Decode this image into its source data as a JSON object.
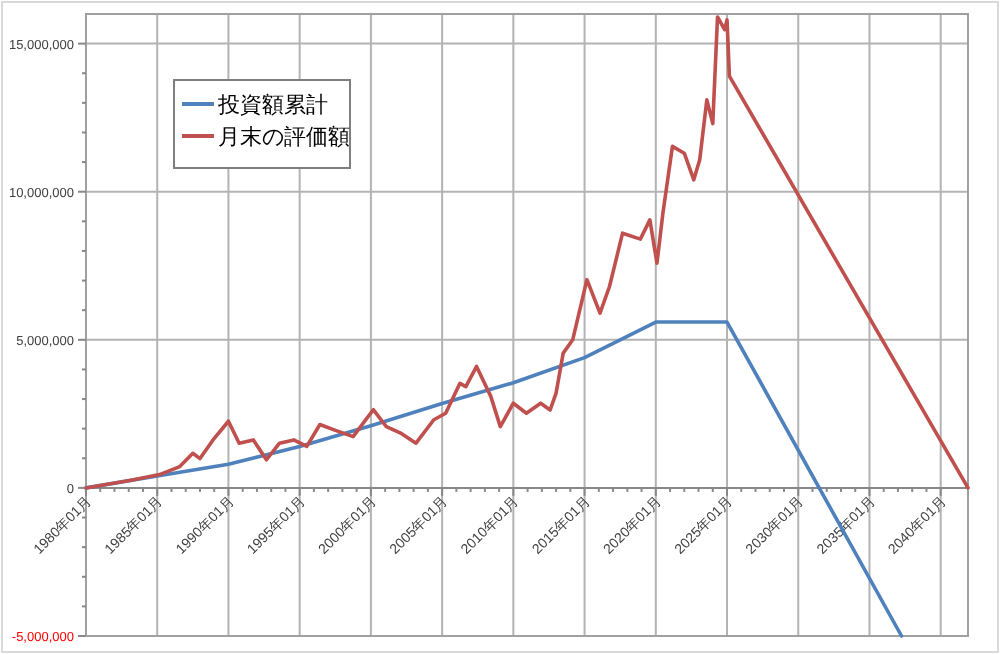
{
  "chart_data": {
    "type": "line",
    "legend": "top left",
    "grid": true,
    "xlim": [
      "1980-01",
      "2041-12"
    ],
    "xticks": [
      {
        "value": "1980-01",
        "label": "1980年01月"
      },
      {
        "value": "1985-01",
        "label": "1985年01月"
      },
      {
        "value": "1990-01",
        "label": "1990年01月"
      },
      {
        "value": "1995-01",
        "label": "1995年01月"
      },
      {
        "value": "2000-01",
        "label": "2000年01月"
      },
      {
        "value": "2005-01",
        "label": "2005年01月"
      },
      {
        "value": "2010-01",
        "label": "2010年01月"
      },
      {
        "value": "2015-01",
        "label": "2015年01月"
      },
      {
        "value": "2020-01",
        "label": "2020年01月"
      },
      {
        "value": "2025-01",
        "label": "2025年01月"
      },
      {
        "value": "2030-01",
        "label": "2030年01月"
      },
      {
        "value": "2035-01",
        "label": "2035年01月"
      },
      {
        "value": "2040-01",
        "label": "2040年01月"
      }
    ],
    "ylim": [
      -5000000,
      16000000
    ],
    "yticks": [
      {
        "value": -5000000,
        "label": "-5,000,000"
      },
      {
        "value": 0,
        "label": "0"
      },
      {
        "value": 5000000,
        "label": "5,000,000"
      },
      {
        "value": 10000000,
        "label": "10,000,000"
      },
      {
        "value": 15000000,
        "label": "15,000,000"
      }
    ],
    "series": [
      {
        "name": "投資額累計",
        "color": "#4f81bd",
        "x": [
          "1980-01",
          "1985-01",
          "1990-01",
          "1995-01",
          "2000-01",
          "2005-01",
          "2010-01",
          "2015-01",
          "2020-01",
          "2025-01",
          "2037-04"
        ],
        "values": [
          0,
          400000,
          800000,
          1400000,
          2100000,
          2850000,
          3550000,
          4400000,
          5600000,
          5600000,
          -5000000
        ]
      },
      {
        "name": "月末の評価額",
        "color": "#c0504d",
        "x": [
          "1980-01",
          "1983-04",
          "1985-03",
          "1986-08",
          "1987-07",
          "1988-01",
          "1988-12",
          "1990-01",
          "1990-10",
          "1991-10",
          "1992-09",
          "1993-08",
          "1994-08",
          "1995-07",
          "1996-06",
          "1997-06",
          "1998-10",
          "2000-03",
          "2001-02",
          "2002-02",
          "2003-03",
          "2004-06",
          "2005-04",
          "2006-04",
          "2006-09",
          "2007-06",
          "2008-06",
          "2009-02",
          "2010-01",
          "2010-12",
          "2011-12",
          "2012-08",
          "2013-01",
          "2013-07",
          "2014-03",
          "2015-03",
          "2016-02",
          "2016-10",
          "2017-09",
          "2018-12",
          "2019-08",
          "2020-02",
          "2020-07",
          "2021-03",
          "2022-01",
          "2022-09",
          "2023-02",
          "2023-08",
          "2024-01",
          "2024-05",
          "2024-11",
          "2025-01",
          "2025-03",
          "2041-12"
        ],
        "values": [
          0,
          270000,
          450000,
          720000,
          1170000,
          990000,
          1620000,
          2250000,
          1510000,
          1620000,
          950000,
          1510000,
          1620000,
          1400000,
          2140000,
          1960000,
          1730000,
          2640000,
          2070000,
          1850000,
          1510000,
          2300000,
          2520000,
          3530000,
          3420000,
          4100000,
          3090000,
          2070000,
          2860000,
          2520000,
          2860000,
          2630000,
          3200000,
          4550000,
          5000000,
          7030000,
          5900000,
          6800000,
          8600000,
          8400000,
          9050000,
          7590000,
          9280000,
          11530000,
          11300000,
          10400000,
          11080000,
          13100000,
          12300000,
          15900000,
          15470000,
          15800000,
          13900000,
          0
        ]
      }
    ]
  }
}
